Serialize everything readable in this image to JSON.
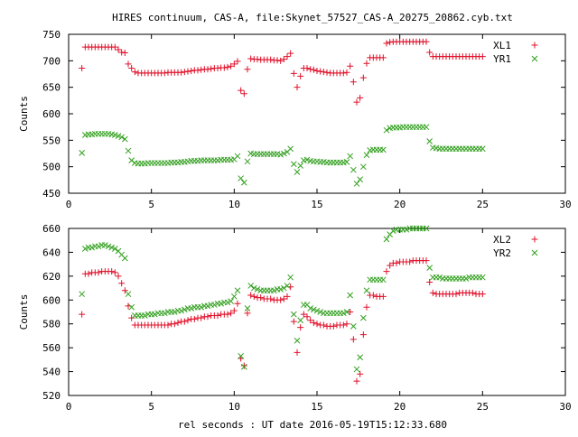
{
  "title": "HIRES continuum, CAS-A, file:Skynet_57527_CAS-A_20275_20862.cyb.txt",
  "xlabel": "rel seconds : UT date 2016-05-19T15:12:33.680",
  "colors": {
    "xl": "#e0112a",
    "yr": "#33a020"
  },
  "chart_data": [
    {
      "type": "scatter",
      "ylabel": "Counts",
      "xlim": [
        0,
        30
      ],
      "ylim": [
        450,
        750
      ],
      "xticks": [
        0,
        5,
        10,
        15,
        20,
        25,
        30
      ],
      "yticks": [
        450,
        500,
        550,
        600,
        650,
        700,
        750
      ],
      "legend_position": "top-right",
      "series": [
        {
          "name": "XL1",
          "marker": "plus",
          "x": [
            0.8,
            1.0,
            1.2,
            1.4,
            1.6,
            1.8,
            2.0,
            2.2,
            2.4,
            2.6,
            2.8,
            3.0,
            3.2,
            3.4,
            3.6,
            3.8,
            4.0,
            4.2,
            4.4,
            4.6,
            4.8,
            5.0,
            5.2,
            5.4,
            5.6,
            5.8,
            6.0,
            6.2,
            6.4,
            6.6,
            6.8,
            7.0,
            7.2,
            7.4,
            7.6,
            7.8,
            8.0,
            8.2,
            8.4,
            8.6,
            8.8,
            9.0,
            9.2,
            9.4,
            9.6,
            9.8,
            10.0,
            10.2,
            10.4,
            10.6,
            10.8,
            11.0,
            11.2,
            11.4,
            11.6,
            11.8,
            12.0,
            12.2,
            12.4,
            12.6,
            12.8,
            13.0,
            13.2,
            13.4,
            13.6,
            13.8,
            14.0,
            14.2,
            14.4,
            14.6,
            14.8,
            15.0,
            15.2,
            15.4,
            15.6,
            15.8,
            16.0,
            16.2,
            16.4,
            16.6,
            16.8,
            17.0,
            17.2,
            17.4,
            17.6,
            17.8,
            18.0,
            18.2,
            18.4,
            18.6,
            18.8,
            19.0,
            19.2,
            19.4,
            19.6,
            19.8,
            20.0,
            20.2,
            20.4,
            20.6,
            20.8,
            21.0,
            21.2,
            21.4,
            21.6,
            21.8,
            22.0,
            22.2,
            22.4,
            22.6,
            22.8,
            23.0,
            23.2,
            23.4,
            23.6,
            23.8,
            24.0,
            24.2,
            24.4,
            24.6,
            24.8,
            25.0
          ],
          "y": [
            686,
            726,
            726,
            726,
            726,
            726,
            726,
            726,
            726,
            726,
            726,
            721,
            716,
            715,
            694,
            686,
            679,
            677,
            677,
            677,
            677,
            677,
            677,
            677,
            677,
            677,
            678,
            678,
            678,
            678,
            678,
            679,
            680,
            681,
            682,
            682,
            683,
            684,
            684,
            685,
            686,
            686,
            687,
            687,
            688,
            690,
            694,
            699,
            644,
            638,
            684,
            704,
            703,
            703,
            702,
            702,
            702,
            702,
            701,
            701,
            700,
            703,
            708,
            714,
            676,
            650,
            671,
            686,
            686,
            684,
            683,
            681,
            680,
            679,
            678,
            677,
            677,
            677,
            677,
            677,
            678,
            690,
            660,
            622,
            630,
            668,
            695,
            706,
            706,
            706,
            706,
            706,
            733,
            735,
            736,
            736,
            736,
            736,
            736,
            736,
            736,
            736,
            736,
            736,
            736,
            716,
            708,
            708,
            708,
            708,
            708,
            708,
            708,
            708,
            708,
            708,
            708,
            708,
            708,
            708,
            708,
            708
          ]
        },
        {
          "name": "YR1",
          "marker": "x",
          "x": [
            0.8,
            1.0,
            1.2,
            1.4,
            1.6,
            1.8,
            2.0,
            2.2,
            2.4,
            2.6,
            2.8,
            3.0,
            3.2,
            3.4,
            3.6,
            3.8,
            4.0,
            4.2,
            4.4,
            4.6,
            4.8,
            5.0,
            5.2,
            5.4,
            5.6,
            5.8,
            6.0,
            6.2,
            6.4,
            6.6,
            6.8,
            7.0,
            7.2,
            7.4,
            7.6,
            7.8,
            8.0,
            8.2,
            8.4,
            8.6,
            8.8,
            9.0,
            9.2,
            9.4,
            9.6,
            9.8,
            10.0,
            10.2,
            10.4,
            10.6,
            10.8,
            11.0,
            11.2,
            11.4,
            11.6,
            11.8,
            12.0,
            12.2,
            12.4,
            12.6,
            12.8,
            13.0,
            13.2,
            13.4,
            13.6,
            13.8,
            14.0,
            14.2,
            14.4,
            14.6,
            14.8,
            15.0,
            15.2,
            15.4,
            15.6,
            15.8,
            16.0,
            16.2,
            16.4,
            16.6,
            16.8,
            17.0,
            17.2,
            17.4,
            17.6,
            17.8,
            18.0,
            18.2,
            18.4,
            18.6,
            18.8,
            19.0,
            19.2,
            19.4,
            19.6,
            19.8,
            20.0,
            20.2,
            20.4,
            20.6,
            20.8,
            21.0,
            21.2,
            21.4,
            21.6,
            21.8,
            22.0,
            22.2,
            22.4,
            22.6,
            22.8,
            23.0,
            23.2,
            23.4,
            23.6,
            23.8,
            24.0,
            24.2,
            24.4,
            24.6,
            24.8,
            25.0
          ],
          "y": [
            526,
            560,
            561,
            561,
            562,
            562,
            562,
            562,
            562,
            561,
            560,
            558,
            556,
            552,
            530,
            512,
            507,
            506,
            506,
            506,
            507,
            507,
            507,
            507,
            507,
            507,
            507,
            508,
            508,
            508,
            509,
            509,
            510,
            511,
            511,
            511,
            512,
            512,
            512,
            512,
            512,
            512,
            513,
            513,
            513,
            513,
            514,
            520,
            478,
            470,
            510,
            525,
            524,
            524,
            524,
            524,
            524,
            524,
            524,
            524,
            523,
            525,
            528,
            534,
            505,
            490,
            502,
            512,
            513,
            511,
            510,
            510,
            509,
            509,
            508,
            508,
            508,
            508,
            508,
            508,
            509,
            520,
            494,
            468,
            476,
            500,
            522,
            531,
            532,
            532,
            532,
            532,
            569,
            573,
            574,
            574,
            574,
            575,
            575,
            575,
            575,
            575,
            575,
            575,
            575,
            548,
            536,
            535,
            534,
            534,
            534,
            534,
            534,
            534,
            534,
            534,
            534,
            534,
            534,
            534,
            534,
            534
          ]
        }
      ]
    },
    {
      "type": "scatter",
      "ylabel": "Counts",
      "xlim": [
        0,
        30
      ],
      "ylim": [
        520,
        660
      ],
      "xticks": [
        0,
        5,
        10,
        15,
        20,
        25,
        30
      ],
      "yticks": [
        520,
        540,
        560,
        580,
        600,
        620,
        640,
        660
      ],
      "legend_position": "top-right",
      "series": [
        {
          "name": "XL2",
          "marker": "plus",
          "x": [
            0.8,
            1.0,
            1.2,
            1.4,
            1.6,
            1.8,
            2.0,
            2.2,
            2.4,
            2.6,
            2.8,
            3.0,
            3.2,
            3.4,
            3.6,
            3.8,
            4.0,
            4.2,
            4.4,
            4.6,
            4.8,
            5.0,
            5.2,
            5.4,
            5.6,
            5.8,
            6.0,
            6.2,
            6.4,
            6.6,
            6.8,
            7.0,
            7.2,
            7.4,
            7.6,
            7.8,
            8.0,
            8.2,
            8.4,
            8.6,
            8.8,
            9.0,
            9.2,
            9.4,
            9.6,
            9.8,
            10.0,
            10.2,
            10.4,
            10.6,
            10.8,
            11.0,
            11.2,
            11.4,
            11.6,
            11.8,
            12.0,
            12.2,
            12.4,
            12.6,
            12.8,
            13.0,
            13.2,
            13.4,
            13.6,
            13.8,
            14.0,
            14.2,
            14.4,
            14.6,
            14.8,
            15.0,
            15.2,
            15.4,
            15.6,
            15.8,
            16.0,
            16.2,
            16.4,
            16.6,
            16.8,
            17.0,
            17.2,
            17.4,
            17.6,
            17.8,
            18.0,
            18.2,
            18.4,
            18.6,
            18.8,
            19.0,
            19.2,
            19.4,
            19.6,
            19.8,
            20.0,
            20.2,
            20.4,
            20.6,
            20.8,
            21.0,
            21.2,
            21.4,
            21.6,
            21.8,
            22.0,
            22.2,
            22.4,
            22.6,
            22.8,
            23.0,
            23.2,
            23.4,
            23.6,
            23.8,
            24.0,
            24.2,
            24.4,
            24.6,
            24.8,
            25.0
          ],
          "y": [
            588,
            622,
            622,
            623,
            623,
            623,
            624,
            624,
            624,
            624,
            623,
            620,
            614,
            608,
            595,
            585,
            579,
            579,
            579,
            579,
            579,
            579,
            579,
            579,
            579,
            579,
            579,
            580,
            580,
            581,
            582,
            582,
            583,
            584,
            584,
            585,
            585,
            586,
            586,
            587,
            587,
            587,
            588,
            588,
            588,
            589,
            591,
            597,
            551,
            545,
            589,
            604,
            603,
            602,
            602,
            601,
            601,
            601,
            600,
            600,
            600,
            601,
            603,
            611,
            582,
            556,
            577,
            588,
            586,
            583,
            581,
            580,
            579,
            579,
            578,
            578,
            578,
            579,
            579,
            579,
            580,
            590,
            567,
            532,
            538,
            571,
            594,
            604,
            604,
            603,
            603,
            603,
            624,
            629,
            631,
            631,
            632,
            632,
            632,
            632,
            633,
            633,
            633,
            633,
            633,
            615,
            606,
            605,
            605,
            605,
            605,
            605,
            605,
            605,
            606,
            606,
            606,
            606,
            606,
            605,
            605,
            605
          ]
        },
        {
          "name": "YR2",
          "marker": "x",
          "x": [
            0.8,
            1.0,
            1.2,
            1.4,
            1.6,
            1.8,
            2.0,
            2.2,
            2.4,
            2.6,
            2.8,
            3.0,
            3.2,
            3.4,
            3.6,
            3.8,
            4.0,
            4.2,
            4.4,
            4.6,
            4.8,
            5.0,
            5.2,
            5.4,
            5.6,
            5.8,
            6.0,
            6.2,
            6.4,
            6.6,
            6.8,
            7.0,
            7.2,
            7.4,
            7.6,
            7.8,
            8.0,
            8.2,
            8.4,
            8.6,
            8.8,
            9.0,
            9.2,
            9.4,
            9.6,
            9.8,
            10.0,
            10.2,
            10.4,
            10.6,
            10.8,
            11.0,
            11.2,
            11.4,
            11.6,
            11.8,
            12.0,
            12.2,
            12.4,
            12.6,
            12.8,
            13.0,
            13.2,
            13.4,
            13.6,
            13.8,
            14.0,
            14.2,
            14.4,
            14.6,
            14.8,
            15.0,
            15.2,
            15.4,
            15.6,
            15.8,
            16.0,
            16.2,
            16.4,
            16.6,
            16.8,
            17.0,
            17.2,
            17.4,
            17.6,
            17.8,
            18.0,
            18.2,
            18.4,
            18.6,
            18.8,
            19.0,
            19.2,
            19.4,
            19.6,
            19.8,
            20.0,
            20.2,
            20.4,
            20.6,
            20.8,
            21.0,
            21.2,
            21.4,
            21.6,
            21.8,
            22.0,
            22.2,
            22.4,
            22.6,
            22.8,
            23.0,
            23.2,
            23.4,
            23.6,
            23.8,
            24.0,
            24.2,
            24.4,
            24.6,
            24.8,
            25.0
          ],
          "y": [
            605,
            643,
            644,
            644,
            645,
            645,
            646,
            646,
            645,
            644,
            643,
            641,
            638,
            635,
            605,
            594,
            587,
            587,
            587,
            587,
            588,
            588,
            588,
            589,
            589,
            589,
            590,
            590,
            590,
            591,
            591,
            592,
            593,
            593,
            594,
            594,
            594,
            595,
            595,
            596,
            596,
            597,
            597,
            598,
            598,
            599,
            603,
            608,
            553,
            544,
            593,
            612,
            610,
            609,
            608,
            608,
            608,
            608,
            608,
            609,
            609,
            610,
            612,
            619,
            588,
            566,
            583,
            596,
            596,
            593,
            592,
            591,
            590,
            589,
            589,
            589,
            589,
            589,
            589,
            589,
            590,
            604,
            578,
            542,
            552,
            585,
            608,
            617,
            617,
            617,
            617,
            617,
            651,
            655,
            658,
            659,
            659,
            659,
            659,
            660,
            660,
            660,
            660,
            660,
            660,
            627,
            619,
            619,
            619,
            618,
            618,
            618,
            618,
            618,
            618,
            618,
            618,
            619,
            619,
            619,
            619,
            619
          ]
        }
      ]
    }
  ]
}
